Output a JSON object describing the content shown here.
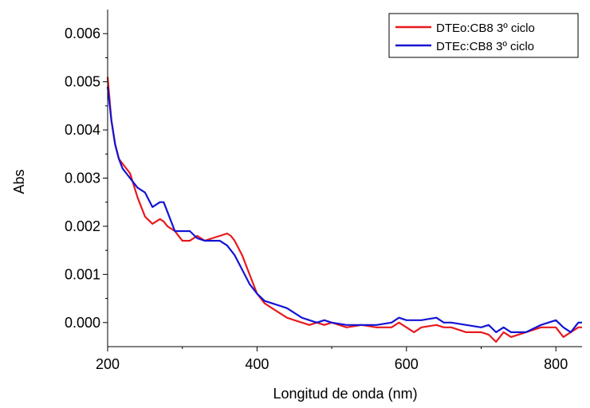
{
  "chart_data": {
    "type": "line",
    "xlabel": "Longitud de onda (nm)",
    "ylabel": "Abs",
    "xlim": [
      200,
      835
    ],
    "ylim": [
      -0.0005,
      0.0065
    ],
    "x_ticks": [
      200,
      400,
      600,
      800
    ],
    "y_ticks": [
      0.0,
      0.001,
      0.002,
      0.003,
      0.004,
      0.005,
      0.006
    ],
    "x_tick_labels": [
      "200",
      "400",
      "600",
      "800"
    ],
    "y_tick_labels": [
      "0.000",
      "0.001",
      "0.002",
      "0.003",
      "0.004",
      "0.005",
      "0.006"
    ],
    "grid": false,
    "legend_position": "top-right",
    "series": [
      {
        "name": "DTEo:CB8 3º ciclo",
        "color": "#e8191d",
        "x": [
          200,
          205,
          210,
          215,
          220,
          230,
          240,
          250,
          260,
          270,
          275,
          280,
          290,
          300,
          310,
          320,
          330,
          340,
          350,
          360,
          365,
          370,
          380,
          390,
          400,
          410,
          420,
          430,
          440,
          450,
          460,
          470,
          480,
          490,
          500,
          520,
          540,
          560,
          580,
          590,
          600,
          610,
          620,
          640,
          650,
          660,
          680,
          700,
          710,
          720,
          730,
          740,
          760,
          780,
          790,
          800,
          810,
          820,
          830,
          835
        ],
        "y": [
          0.0051,
          0.0042,
          0.0037,
          0.0034,
          0.0033,
          0.0031,
          0.0026,
          0.0022,
          0.00205,
          0.00215,
          0.0021,
          0.002,
          0.0019,
          0.0017,
          0.0017,
          0.0018,
          0.0017,
          0.00175,
          0.0018,
          0.00185,
          0.0018,
          0.0017,
          0.0014,
          0.001,
          0.0006,
          0.0004,
          0.0003,
          0.0002,
          0.0001,
          5e-05,
          0.0,
          -5e-05,
          0.0,
          -5e-05,
          0.0,
          -0.0001,
          -5e-05,
          -0.0001,
          -0.0001,
          0.0,
          -0.0001,
          -0.0002,
          -0.0001,
          -5e-05,
          -0.0001,
          -0.0001,
          -0.0002,
          -0.0002,
          -0.00025,
          -0.0004,
          -0.0002,
          -0.0003,
          -0.0002,
          -0.0001,
          -0.0001,
          -0.0001,
          -0.0003,
          -0.0002,
          -0.0001,
          -0.0001
        ]
      },
      {
        "name": "DTEc:CB8 3º ciclo",
        "color": "#1414d4",
        "x": [
          200,
          205,
          210,
          215,
          220,
          230,
          240,
          250,
          260,
          270,
          275,
          280,
          290,
          300,
          310,
          320,
          330,
          340,
          350,
          355,
          360,
          370,
          380,
          390,
          400,
          410,
          420,
          430,
          440,
          450,
          460,
          470,
          480,
          490,
          500,
          520,
          540,
          560,
          580,
          590,
          600,
          610,
          620,
          640,
          650,
          660,
          680,
          700,
          710,
          720,
          730,
          740,
          760,
          780,
          790,
          800,
          810,
          820,
          830,
          835
        ],
        "y": [
          0.0049,
          0.0042,
          0.0037,
          0.0034,
          0.0032,
          0.003,
          0.0028,
          0.0027,
          0.0024,
          0.0025,
          0.0025,
          0.0023,
          0.0019,
          0.0019,
          0.0019,
          0.00175,
          0.0017,
          0.0017,
          0.0017,
          0.00165,
          0.0016,
          0.0014,
          0.0011,
          0.0008,
          0.0006,
          0.00045,
          0.0004,
          0.00035,
          0.0003,
          0.0002,
          0.0001,
          5e-05,
          0.0,
          5e-05,
          0.0,
          -5e-05,
          -5e-05,
          -5e-05,
          0.0,
          0.0001,
          5e-05,
          5e-05,
          5e-05,
          0.0001,
          0.0,
          0.0,
          -5e-05,
          -0.0001,
          -5e-05,
          -0.0002,
          -0.0001,
          -0.0002,
          -0.0002,
          -5e-05,
          0.0,
          5e-05,
          -0.0001,
          -0.0002,
          0.0,
          0.0
        ]
      }
    ]
  }
}
